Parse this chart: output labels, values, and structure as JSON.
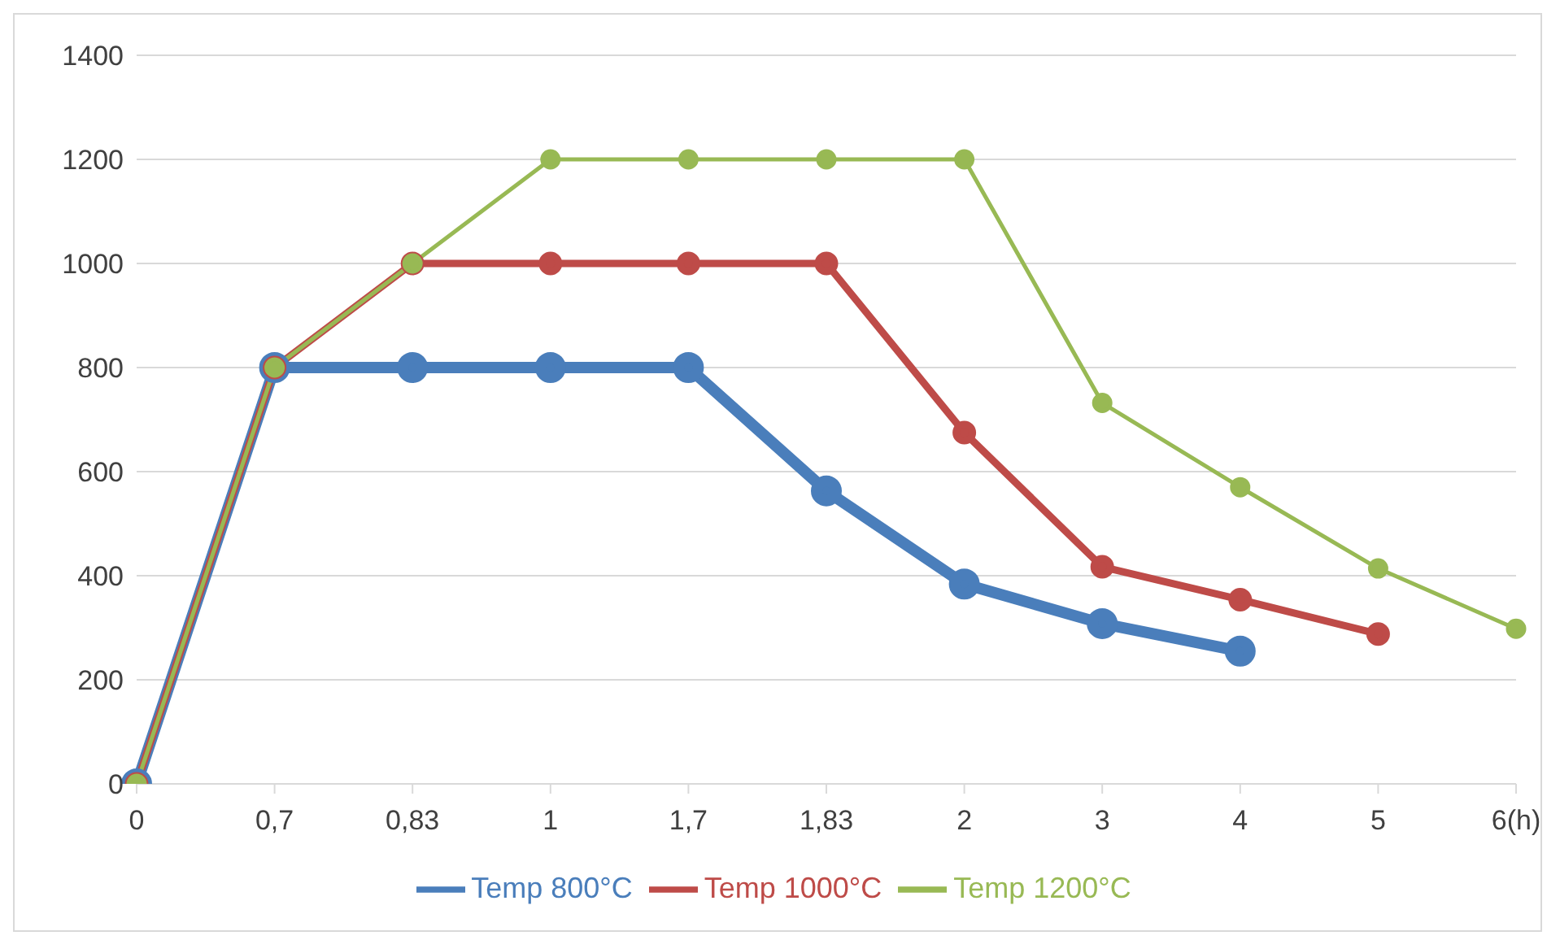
{
  "chart_data": {
    "type": "line",
    "categories": [
      "0",
      "0,7",
      "0,83",
      "1",
      "1,7",
      "1,83",
      "2",
      "3",
      "4",
      "5",
      "6(h)"
    ],
    "series": [
      {
        "name": "Temp 800°C",
        "color": "#4a7ebb",
        "values": [
          0,
          800,
          800,
          800,
          800,
          563,
          384,
          308,
          255,
          null,
          null
        ]
      },
      {
        "name": "Temp 1000°C",
        "color": "#be4b48",
        "values": [
          0,
          800,
          1000,
          1000,
          1000,
          1000,
          675,
          417,
          354,
          288,
          null
        ]
      },
      {
        "name": "Temp 1200°C",
        "color": "#98b954",
        "values": [
          0,
          800,
          1000,
          1200,
          1200,
          1200,
          1200,
          732,
          570,
          414,
          298
        ]
      }
    ],
    "ylim": [
      0,
      1400
    ],
    "yticks": [
      0,
      200,
      400,
      600,
      800,
      1000,
      1200,
      1400
    ],
    "grid": "y",
    "legend": "bottom",
    "marker": "circle",
    "line_style": "solid"
  }
}
